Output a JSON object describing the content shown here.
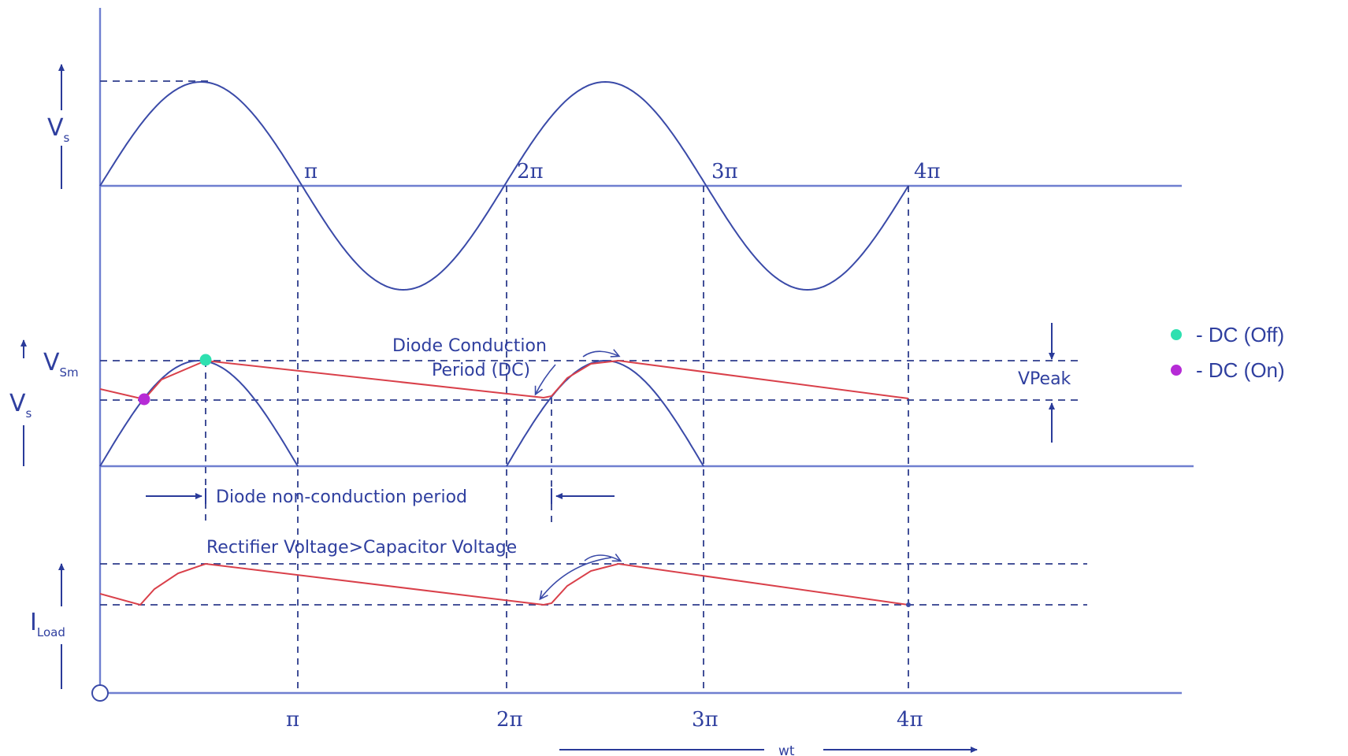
{
  "colors": {
    "waveform": "#3a4aa8",
    "capacitor_voltage": "#d9404a",
    "axis": "#6f7fd0",
    "label_text": "#2f3f9f",
    "dc_off_marker": "#2ee0b0",
    "dc_on_marker": "#b62bd6"
  },
  "top_plot": {
    "ylabel_main": "V",
    "ylabel_sub": "s",
    "ticks": [
      "π",
      "2π",
      "3π",
      "4π"
    ]
  },
  "middle_plot": {
    "ylabel_vsm_main": "V",
    "ylabel_vsm_sub": "Sm",
    "ylabel_vs_main": "V",
    "ylabel_vs_sub": "s",
    "annotation_conduction_line1": "Diode Conduction",
    "annotation_conduction_line2": "Period (DC)",
    "annotation_vpeak": "VPeak",
    "annotation_nonconduction": "Diode non-conduction period"
  },
  "bottom_plot": {
    "ylabel_main": "I",
    "ylabel_sub": "Load",
    "annotation": "Rectifier Voltage>Capacitor Voltage"
  },
  "x_axis": {
    "ticks": [
      "π",
      "2π",
      "3π",
      "4π"
    ],
    "label": "wt"
  },
  "legend": [
    {
      "label": "- DC (Off)",
      "color": "#2ee0b0",
      "icon": "teal-dot"
    },
    {
      "label": "- DC (On)",
      "color": "#b62bd6",
      "icon": "purple-dot"
    }
  ]
}
